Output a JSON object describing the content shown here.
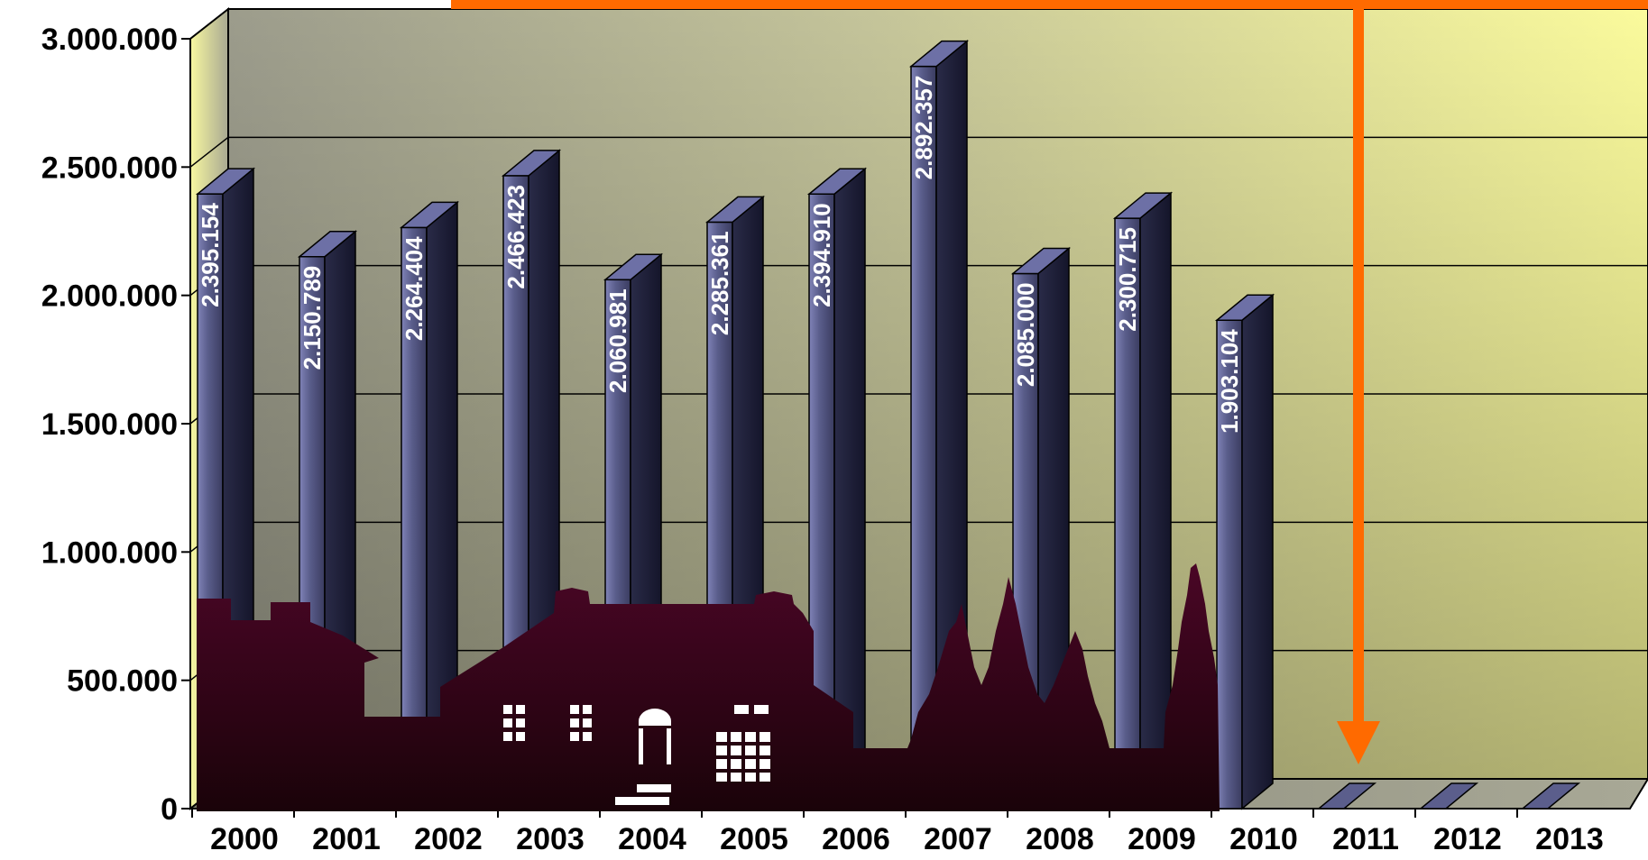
{
  "chart_data": {
    "type": "bar",
    "categories": [
      "2000",
      "2001",
      "2002",
      "2003",
      "2004",
      "2005",
      "2006",
      "2007",
      "2008",
      "2009",
      "2010",
      "2011",
      "2012",
      "2013"
    ],
    "values": [
      2395154,
      2150789,
      2264404,
      2466423,
      2060981,
      2285361,
      2394910,
      2892357,
      2085000,
      2300715,
      1903104,
      0,
      0,
      0
    ],
    "data_labels": [
      "2.395.154",
      "2.150.789",
      "2.264.404",
      "2.466.423",
      "2.060.981",
      "2.285.361",
      "2.394.910",
      "2.892.357",
      "2.085.000",
      "2.300.715",
      "1.903.104",
      "",
      "",
      ""
    ],
    "y_ticks": [
      0,
      500000,
      1000000,
      1500000,
      2000000,
      2500000,
      3000000
    ],
    "y_tick_labels": [
      "0",
      "500.000",
      "1.000.000",
      "1.500.000",
      "2.000.000",
      "2.500.000",
      "3.000.000"
    ],
    "ylim": [
      0,
      3000000
    ],
    "grid": true,
    "title": "",
    "xlabel": "",
    "ylabel": "",
    "colors": {
      "bar_front": "#5b5e8c",
      "bar_side": "#1e1f38",
      "bar_top": "#6d70a6",
      "wall_left": "#9a9a88",
      "wall_right": "#fbfb9a",
      "arrow": "#ff6a00",
      "silhouette_top": "#4a0626",
      "silhouette_bottom": "#1a0309"
    },
    "annotations": [
      "orange-arrow-pointing-down-to-2011"
    ]
  }
}
